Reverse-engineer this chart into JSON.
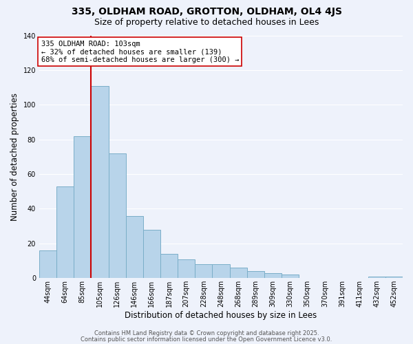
{
  "title_line1": "335, OLDHAM ROAD, GROTTON, OLDHAM, OL4 4JS",
  "title_line2": "Size of property relative to detached houses in Lees",
  "xlabel": "Distribution of detached houses by size in Lees",
  "ylabel": "Number of detached properties",
  "bar_color": "#b8d4ea",
  "bar_edge_color": "#7aaec8",
  "categories": [
    "44sqm",
    "64sqm",
    "85sqm",
    "105sqm",
    "126sqm",
    "146sqm",
    "166sqm",
    "187sqm",
    "207sqm",
    "228sqm",
    "248sqm",
    "268sqm",
    "289sqm",
    "309sqm",
    "330sqm",
    "350sqm",
    "370sqm",
    "391sqm",
    "411sqm",
    "432sqm",
    "452sqm"
  ],
  "values": [
    16,
    53,
    82,
    111,
    72,
    36,
    28,
    14,
    11,
    8,
    8,
    6,
    4,
    3,
    2,
    0,
    0,
    0,
    0,
    1,
    1
  ],
  "ylim": [
    0,
    140
  ],
  "vline_x_index": 3,
  "vline_color": "#cc0000",
  "annotation_title": "335 OLDHAM ROAD: 103sqm",
  "annotation_line2": "← 32% of detached houses are smaller (139)",
  "annotation_line3": "68% of semi-detached houses are larger (300) →",
  "annotation_box_facecolor": "#ffffff",
  "annotation_box_edgecolor": "#cc0000",
  "footer_line1": "Contains HM Land Registry data © Crown copyright and database right 2025.",
  "footer_line2": "Contains public sector information licensed under the Open Government Licence v3.0.",
  "background_color": "#eef2fb",
  "grid_color": "#ffffff",
  "title_fontsize": 10,
  "subtitle_fontsize": 9,
  "xlabel_fontsize": 8.5,
  "ylabel_fontsize": 8.5,
  "tick_fontsize": 7,
  "footer_fontsize": 6,
  "annotation_fontsize": 7.5
}
